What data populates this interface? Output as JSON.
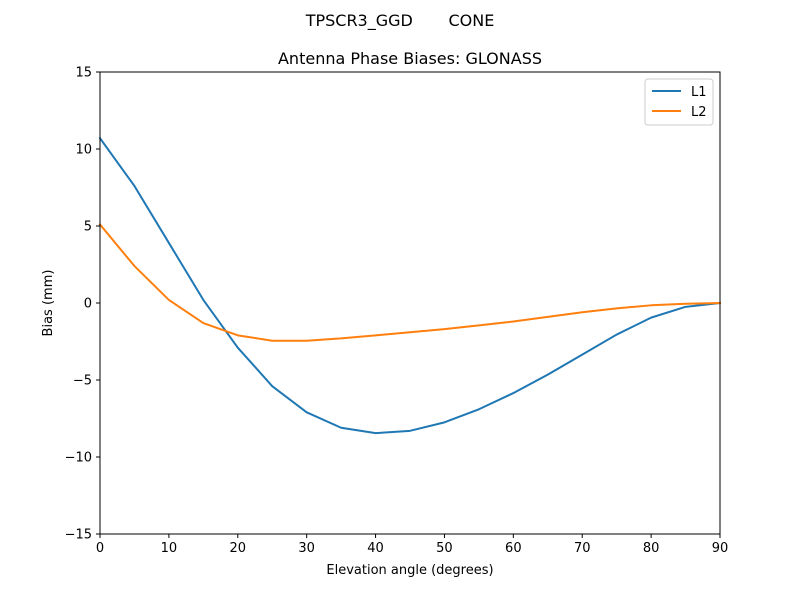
{
  "figure": {
    "suptitle": "TPSCR3_GGD       CONE"
  },
  "chart_data": {
    "type": "line",
    "title": "Antenna Phase Biases: GLONASS",
    "xlabel": "Elevation angle (degrees)",
    "ylabel": "Bias (mm)",
    "xlim": [
      0,
      90
    ],
    "ylim": [
      -15,
      15
    ],
    "xticks": [
      0,
      10,
      20,
      30,
      40,
      50,
      60,
      70,
      80,
      90
    ],
    "yticks": [
      -15,
      -10,
      -5,
      0,
      5,
      10,
      15
    ],
    "xtick_labels": [
      "0",
      "10",
      "20",
      "30",
      "40",
      "50",
      "60",
      "70",
      "80",
      "90"
    ],
    "ytick_labels": [
      "−15",
      "−10",
      "−5",
      "0",
      "5",
      "10",
      "15"
    ],
    "grid": false,
    "legend_position": "upper right",
    "x": [
      0,
      5,
      10,
      15,
      20,
      25,
      30,
      35,
      40,
      45,
      50,
      55,
      60,
      65,
      70,
      75,
      80,
      85,
      90
    ],
    "series": [
      {
        "name": "L1",
        "color": "#1f77b4",
        "values": [
          10.7,
          7.6,
          3.9,
          0.2,
          -2.9,
          -5.4,
          -7.1,
          -8.1,
          -8.45,
          -8.3,
          -7.75,
          -6.9,
          -5.85,
          -4.65,
          -3.35,
          -2.05,
          -0.95,
          -0.25,
          0
        ]
      },
      {
        "name": "L2",
        "color": "#ff7f0e",
        "values": [
          5.1,
          2.4,
          0.2,
          -1.3,
          -2.1,
          -2.45,
          -2.45,
          -2.3,
          -2.1,
          -1.9,
          -1.7,
          -1.45,
          -1.2,
          -0.9,
          -0.6,
          -0.35,
          -0.15,
          -0.05,
          0
        ]
      }
    ]
  }
}
